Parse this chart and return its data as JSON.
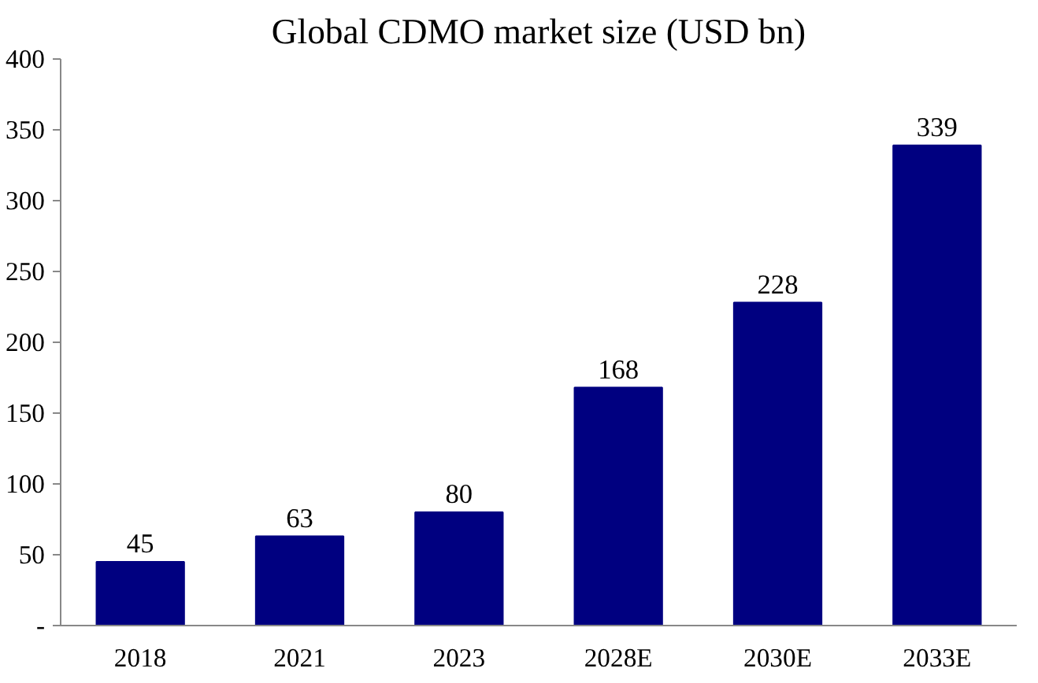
{
  "chart_data": {
    "type": "bar",
    "title": "Global CDMO market size (USD bn)",
    "categories": [
      "2018",
      "2021",
      "2023",
      "2028E",
      "2030E",
      "2033E"
    ],
    "values": [
      45,
      63,
      80,
      168,
      228,
      339
    ],
    "color": "#000080",
    "ylim": [
      0,
      400
    ],
    "yticks": [
      {
        "value": 0,
        "label": "-"
      },
      50,
      100,
      150,
      200,
      250,
      300,
      350,
      400
    ],
    "data_labels": true,
    "grid": false
  }
}
